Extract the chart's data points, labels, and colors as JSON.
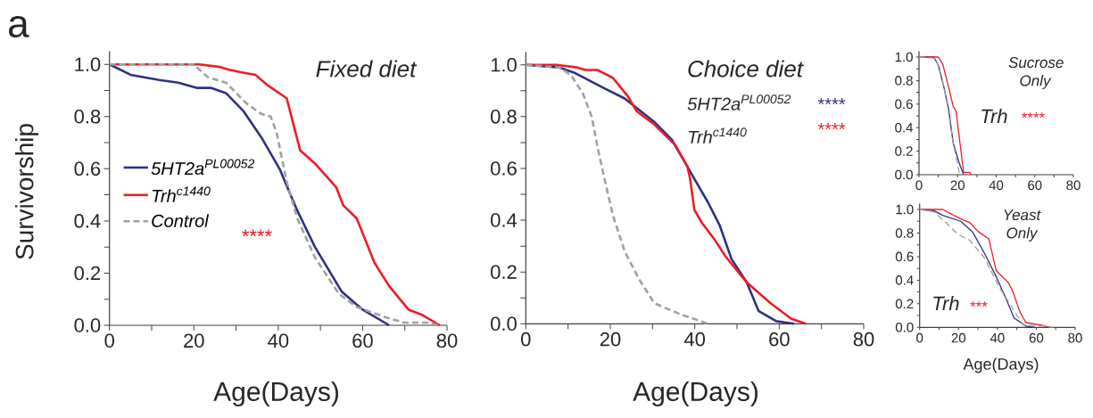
{
  "chart_data": [
    {
      "type": "line",
      "title": "Fixed diet",
      "xlabel": "Age(Days)",
      "ylabel": "Survivorship",
      "annotations": [
        "a",
        "****"
      ],
      "legend": "left",
      "xlim": [
        0,
        80
      ],
      "ylim": [
        0,
        1.05
      ],
      "xticks": [
        0,
        {
          "value": 10,
          "label": null
        },
        20,
        {
          "value": 30,
          "label": null
        },
        40,
        {
          "value": 50,
          "label": null
        },
        60,
        {
          "value": 70,
          "label": null
        },
        80
      ],
      "yticks": [
        {
          "value": 0,
          "label": "0.0"
        },
        {
          "value": 0.1,
          "label": null
        },
        0.2,
        {
          "value": 0.3,
          "label": null
        },
        0.4,
        {
          "value": 0.5,
          "label": null
        },
        0.6,
        {
          "value": 0.7,
          "label": null
        },
        0.8,
        {
          "value": 0.9,
          "label": null
        },
        {
          "value": 1,
          "label": "1.0"
        }
      ],
      "series": [
        {
          "name": "5HT2a$^{PL00052}$",
          "color": "#2e3182",
          "x": [
            0,
            5,
            11.8,
            16.3,
            20.6,
            24,
            27.6,
            31.8,
            36,
            40.3,
            44.5,
            48.7,
            55,
            60,
            66.3
          ],
          "values": [
            1,
            0.96,
            0.94,
            0.93,
            0.91,
            0.91,
            0.89,
            0.82,
            0.72,
            0.6,
            0.44,
            0.3,
            0.13,
            0.06,
            0
          ]
        },
        {
          "name": "Trh$^{c1440}$",
          "color": "#ee1c25",
          "x": [
            0,
            21.3,
            26.2,
            28.2,
            31.1,
            34.6,
            37.5,
            42,
            45.2,
            48.7,
            53.7,
            55.4,
            58.6,
            62.8,
            66.3,
            70.9,
            74.1,
            78.3
          ],
          "values": [
            1,
            1,
            0.99,
            0.98,
            0.97,
            0.96,
            0.92,
            0.87,
            0.67,
            0.62,
            0.53,
            0.46,
            0.41,
            0.24,
            0.15,
            0.06,
            0.04,
            0
          ]
        },
        {
          "name": "Control",
          "color": "#a0a0a0",
          "line_style": "dashed",
          "x": [
            0,
            19.9,
            23.4,
            27.6,
            32.5,
            36,
            38.2,
            39.6,
            42,
            44.5,
            48.7,
            54.4,
            58.6,
            65.6,
            69.9,
            75.5,
            78.3
          ],
          "values": [
            1,
            1,
            0.95,
            0.93,
            0.85,
            0.81,
            0.8,
            0.74,
            0.55,
            0.41,
            0.26,
            0.12,
            0.07,
            0.03,
            0.01,
            0.01,
            0
          ]
        }
      ]
    },
    {
      "type": "line",
      "title": "Choice diet",
      "xlabel": "Age(Days)",
      "annotations": [
        "5HT2a$^{PL00052}$",
        "****",
        "Trh$^{c1440}$",
        "****"
      ],
      "xlim": [
        0,
        80
      ],
      "ylim": [
        0,
        1.05
      ],
      "xticks": [
        0,
        {
          "value": 10,
          "label": null
        },
        20,
        {
          "value": 30,
          "label": null
        },
        40,
        {
          "value": 50,
          "label": null
        },
        60,
        {
          "value": 70,
          "label": null
        },
        80
      ],
      "yticks": [
        {
          "value": 0,
          "label": "0.0"
        },
        {
          "value": 0.1,
          "label": null
        },
        0.2,
        {
          "value": 0.3,
          "label": null
        },
        0.4,
        {
          "value": 0.5,
          "label": null
        },
        0.6,
        {
          "value": 0.7,
          "label": null
        },
        0.8,
        {
          "value": 0.9,
          "label": null
        },
        {
          "value": 1,
          "label": "1.0"
        }
      ],
      "series": [
        {
          "color": "#2e3182",
          "x": [
            0,
            7.9,
            11.4,
            18.5,
            23.4,
            30.4,
            34.6,
            39.9,
            43.1,
            45.9,
            48.7,
            52.3,
            55.1,
            59.3,
            63.5
          ],
          "values": [
            1,
            0.99,
            0.97,
            0.91,
            0.87,
            0.78,
            0.71,
            0.56,
            0.47,
            0.38,
            0.25,
            0.16,
            0.05,
            0.01,
            0
          ]
        },
        {
          "color": "#ee1c25",
          "x": [
            0,
            7.2,
            12.1,
            14.2,
            17,
            20.6,
            24.1,
            26.3,
            30.4,
            35.4,
            38.2,
            38.9,
            39.9,
            41.7,
            44.5,
            47.3,
            52.3,
            57.9,
            62.8,
            66.3
          ],
          "values": [
            1,
            1,
            0.99,
            0.98,
            0.98,
            0.95,
            0.88,
            0.82,
            0.77,
            0.69,
            0.61,
            0.56,
            0.44,
            0.39,
            0.33,
            0.26,
            0.16,
            0.08,
            0.02,
            0
          ]
        },
        {
          "color": "#a0a0a0",
          "line_style": "dashed",
          "x": [
            0,
            7.9,
            10.7,
            13.5,
            15.6,
            17,
            18.5,
            20.6,
            23.4,
            26.9,
            30.4,
            36.1,
            43.1
          ],
          "values": [
            1,
            0.99,
            0.96,
            0.89,
            0.8,
            0.68,
            0.57,
            0.42,
            0.28,
            0.17,
            0.08,
            0.04,
            0
          ]
        }
      ]
    },
    {
      "type": "line",
      "title": "Sucrose Only",
      "annotations": [
        "Trh",
        "****"
      ],
      "xlim": [
        0,
        80
      ],
      "ylim": [
        0,
        1.05
      ],
      "xticks": [
        0,
        {
          "value": 10,
          "label": null
        },
        20,
        {
          "value": 30,
          "label": null
        },
        40,
        {
          "value": 50,
          "label": null
        },
        60,
        {
          "value": 70,
          "label": null
        },
        80
      ],
      "yticks": [
        {
          "value": 0,
          "label": "0.0"
        },
        {
          "value": 0.1,
          "label": null
        },
        0.2,
        {
          "value": 0.3,
          "label": null
        },
        0.4,
        {
          "value": 0.5,
          "label": null
        },
        0.6,
        {
          "value": 0.7,
          "label": null
        },
        0.8,
        {
          "value": 0.9,
          "label": null
        },
        {
          "value": 1,
          "label": "1.0"
        }
      ],
      "series": [
        {
          "color": "#2e3182",
          "x": [
            0,
            7.7,
            10,
            13.1,
            15.4,
            17.7,
            20.8,
            23.1
          ],
          "values": [
            1,
            1,
            0.93,
            0.73,
            0.55,
            0.27,
            0.1,
            0
          ]
        },
        {
          "color": "#ee1c25",
          "x": [
            0,
            10,
            12.3,
            15.4,
            17.7,
            19.2,
            23.1,
            26.2,
            26.9
          ],
          "values": [
            1,
            1,
            0.94,
            0.74,
            0.58,
            0.54,
            0.02,
            0.02,
            0
          ]
        },
        {
          "color": "#a0a0a0",
          "line_style": "dashed",
          "x": [
            0,
            8.5,
            11.5,
            14.6,
            17.7,
            20.8,
            23.1
          ],
          "values": [
            1,
            0.99,
            0.85,
            0.6,
            0.27,
            0.02,
            0
          ]
        }
      ]
    },
    {
      "type": "line",
      "title": "Yeast Only",
      "xlabel": "Age(Days)",
      "annotations": [
        "Trh",
        "***"
      ],
      "xlim": [
        0,
        80
      ],
      "ylim": [
        0,
        1.05
      ],
      "xticks": [
        0,
        {
          "value": 10,
          "label": null
        },
        20,
        {
          "value": 30,
          "label": null
        },
        40,
        {
          "value": 50,
          "label": null
        },
        60,
        {
          "value": 70,
          "label": null
        },
        80
      ],
      "yticks": [
        {
          "value": 0,
          "label": "0.0"
        },
        {
          "value": 0.1,
          "label": null
        },
        0.2,
        {
          "value": 0.3,
          "label": null
        },
        0.4,
        {
          "value": 0.5,
          "label": null
        },
        0.6,
        {
          "value": 0.7,
          "label": null
        },
        0.8,
        {
          "value": 0.9,
          "label": null
        },
        {
          "value": 1,
          "label": "1.0"
        }
      ],
      "series": [
        {
          "color": "#2e3182",
          "x": [
            0,
            7.3,
            11.9,
            21.1,
            27.2,
            33.3,
            39.4,
            44,
            48.6,
            54.7,
            59.3
          ],
          "values": [
            1,
            0.99,
            0.95,
            0.9,
            0.81,
            0.63,
            0.43,
            0.26,
            0.08,
            0.01,
            0
          ]
        },
        {
          "color": "#ee1c25",
          "x": [
            0,
            11.9,
            21.1,
            25.7,
            30.3,
            35.6,
            39.4,
            45.6,
            47.8,
            51.6,
            54.7,
            62.4,
            67
          ],
          "values": [
            1,
            1,
            0.92,
            0.89,
            0.81,
            0.75,
            0.48,
            0.38,
            0.31,
            0.13,
            0.04,
            0.02,
            0
          ]
        },
        {
          "color": "#a0a0a0",
          "line_style": "dashed",
          "x": [
            0,
            7.3,
            13.5,
            19.6,
            25.7,
            33.3,
            41,
            47.1,
            53.2,
            65.4,
            68.5
          ],
          "values": [
            1,
            0.98,
            0.89,
            0.79,
            0.74,
            0.59,
            0.34,
            0.18,
            0.02,
            0.01,
            0
          ]
        }
      ]
    }
  ]
}
